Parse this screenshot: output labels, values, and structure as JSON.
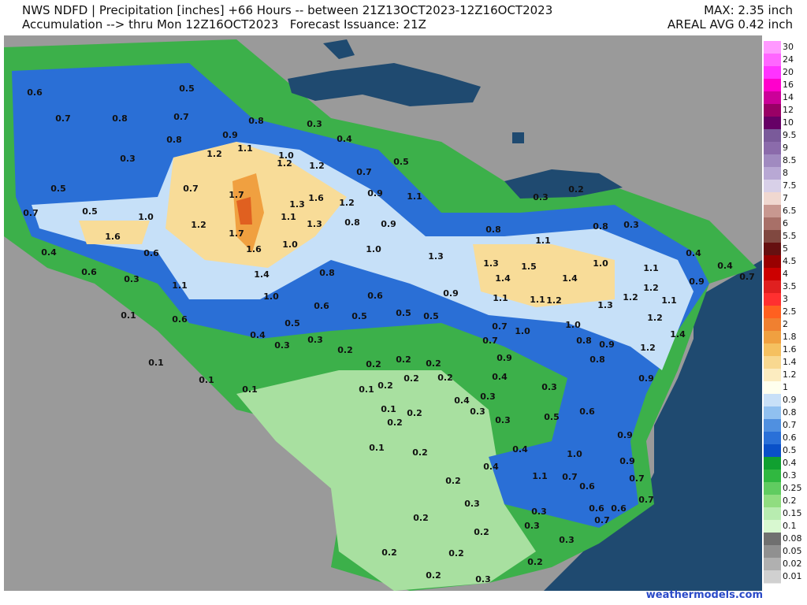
{
  "header": {
    "title": "NWS NDFD | Precipitation [inches] +66 Hours -- between 21Z13OCT2023-12Z16OCT2023",
    "subtitle": "Accumulation --> thru Mon 12Z16OCT2023   Forecast Issuance: 21Z",
    "max": "MAX: 2.35 inch",
    "areal_avg": "AREAL AVG 0.42 inch"
  },
  "footer": {
    "credit": "weathermodels.com"
  },
  "legend": [
    {
      "label": "30",
      "color": "#ff99ff"
    },
    {
      "label": "24",
      "color": "#ff66ff"
    },
    {
      "label": "20",
      "color": "#ff33ff"
    },
    {
      "label": "16",
      "color": "#ff00cc"
    },
    {
      "label": "14",
      "color": "#cc0099"
    },
    {
      "label": "12",
      "color": "#990066"
    },
    {
      "label": "10",
      "color": "#660066"
    },
    {
      "label": "9.5",
      "color": "#7a5a9a"
    },
    {
      "label": "9",
      "color": "#8b6bab"
    },
    {
      "label": "8.5",
      "color": "#a08ac0"
    },
    {
      "label": "8",
      "color": "#b8a8d4"
    },
    {
      "label": "7.5",
      "color": "#d8d0e8"
    },
    {
      "label": "7",
      "color": "#f0d8d0"
    },
    {
      "label": "6.5",
      "color": "#c89890"
    },
    {
      "label": "6",
      "color": "#a87068"
    },
    {
      "label": "5.5",
      "color": "#804840"
    },
    {
      "label": "5",
      "color": "#661010"
    },
    {
      "label": "4.5",
      "color": "#990000"
    },
    {
      "label": "4",
      "color": "#cc0000"
    },
    {
      "label": "3.5",
      "color": "#e02020"
    },
    {
      "label": "3",
      "color": "#ff3030"
    },
    {
      "label": "2.5",
      "color": "#ff6020"
    },
    {
      "label": "2",
      "color": "#f08030"
    },
    {
      "label": "1.8",
      "color": "#f0a040"
    },
    {
      "label": "1.6",
      "color": "#f5c060"
    },
    {
      "label": "1.4",
      "color": "#f8d890"
    },
    {
      "label": "1.2",
      "color": "#fcecc0"
    },
    {
      "label": "1",
      "color": "#ffffee"
    },
    {
      "label": "0.9",
      "color": "#c8e0f8"
    },
    {
      "label": "0.8",
      "color": "#90c0f0"
    },
    {
      "label": "0.7",
      "color": "#5090e0"
    },
    {
      "label": "0.6",
      "color": "#2a70d8"
    },
    {
      "label": "0.5",
      "color": "#0a50c8"
    },
    {
      "label": "0.4",
      "color": "#10a030"
    },
    {
      "label": "0.3",
      "color": "#30b840"
    },
    {
      "label": "0.25",
      "color": "#60cc60"
    },
    {
      "label": "0.2",
      "color": "#90dd80"
    },
    {
      "label": "0.15",
      "color": "#b8ecb0"
    },
    {
      "label": "0.1",
      "color": "#d8f8d0"
    },
    {
      "label": "0.08",
      "color": "#707070"
    },
    {
      "label": "0.05",
      "color": "#909090"
    },
    {
      "label": "0.02",
      "color": "#b0b0b0"
    },
    {
      "label": "0.01",
      "color": "#d0d0d0"
    }
  ],
  "map_labels": [
    "0.6",
    "0.5",
    "0.7",
    "0.8",
    "0.7",
    "0.8",
    "0.3",
    "0.9",
    "0.8",
    "0.4",
    "1.1",
    "1.2",
    "1.0",
    "0.3",
    "1.2",
    "1.2",
    "0.5",
    "0.7",
    "0.5",
    "0.7",
    "1.7",
    "1.6",
    "0.9",
    "1.1",
    "1.2",
    "1.3",
    "0.7",
    "0.5",
    "1.0",
    "1.1",
    "1.2",
    "1.3",
    "0.8",
    "0.9",
    "1.6",
    "1.7",
    "0.4",
    "0.6",
    "1.6",
    "1.0",
    "1.0",
    "1.3",
    "0.8",
    "1.1",
    "0.8",
    "0.3",
    "0.3",
    "0.2",
    "0.4",
    "0.4",
    "0.7",
    "0.6",
    "0.3",
    "1.4",
    "0.8",
    "1.3",
    "1.5",
    "1.0",
    "1.1",
    "1.4",
    "1.4",
    "0.9",
    "1.1",
    "1.2",
    "0.9",
    "0.6",
    "1.0",
    "1.1",
    "1.1",
    "1.2",
    "1.2",
    "1.1",
    "0.6",
    "1.3",
    "0.1",
    "0.6",
    "0.5",
    "0.5",
    "0.5",
    "0.5",
    "1.2",
    "0.7",
    "1.0",
    "1.0",
    "0.4",
    "1.4",
    "0.7",
    "0.8",
    "0.9",
    "0.3",
    "0.3",
    "1.2",
    "0.2",
    "0.9",
    "0.8",
    "0.1",
    "0.2",
    "0.2",
    "0.2",
    "0.4",
    "0.9",
    "0.1",
    "0.2",
    "0.2",
    "0.1",
    "0.1",
    "0.2",
    "0.3",
    "0.4",
    "0.3",
    "0.1",
    "0.2",
    "0.3",
    "0.3",
    "0.5",
    "0.6",
    "0.2",
    "0.9",
    "0.1",
    "0.2",
    "0.4",
    "1.0",
    "0.9",
    "0.4",
    "1.1",
    "0.7",
    "0.7",
    "0.2",
    "0.6",
    "0.3",
    "0.7",
    "0.6",
    "0.6",
    "0.3",
    "0.2",
    "0.7",
    "0.3",
    "0.2",
    "0.3",
    "0.2",
    "0.2",
    "0.2",
    "0.2",
    "0.3",
    "0.2"
  ]
}
